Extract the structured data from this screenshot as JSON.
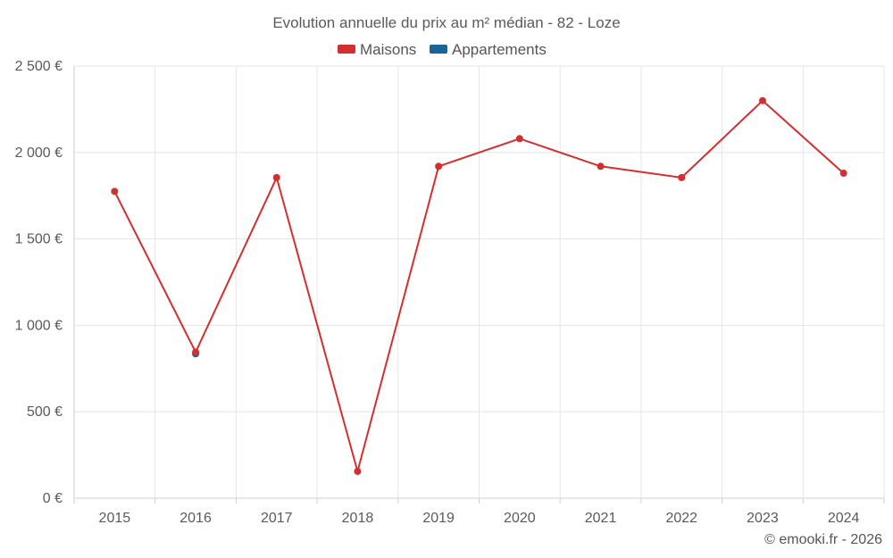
{
  "chart_data": {
    "type": "line",
    "title": "Evolution annuelle du prix au m² médian - 82 - Loze",
    "categories": [
      "2015",
      "2016",
      "2017",
      "2018",
      "2019",
      "2020",
      "2021",
      "2022",
      "2023",
      "2024"
    ],
    "series": [
      {
        "name": "Maisons",
        "color": "#d32f2f",
        "values": [
          1775,
          845,
          1855,
          155,
          1920,
          2080,
          1920,
          1855,
          2300,
          1880
        ]
      },
      {
        "name": "Appartements",
        "color": "#1a6496",
        "values": [
          null,
          835,
          null,
          null,
          null,
          null,
          null,
          null,
          null,
          null
        ]
      }
    ],
    "y_ticks": [
      0,
      500,
      1000,
      1500,
      2000,
      2500
    ],
    "y_tick_labels": [
      "0 €",
      "500 €",
      "1 000 €",
      "1 500 €",
      "2 000 €",
      "2 500 €"
    ],
    "ylim": [
      0,
      2500
    ],
    "xlabel": "",
    "ylabel": "",
    "grid": true,
    "legend_position": "top-center"
  },
  "credit": "© emooki.fr - 2026"
}
